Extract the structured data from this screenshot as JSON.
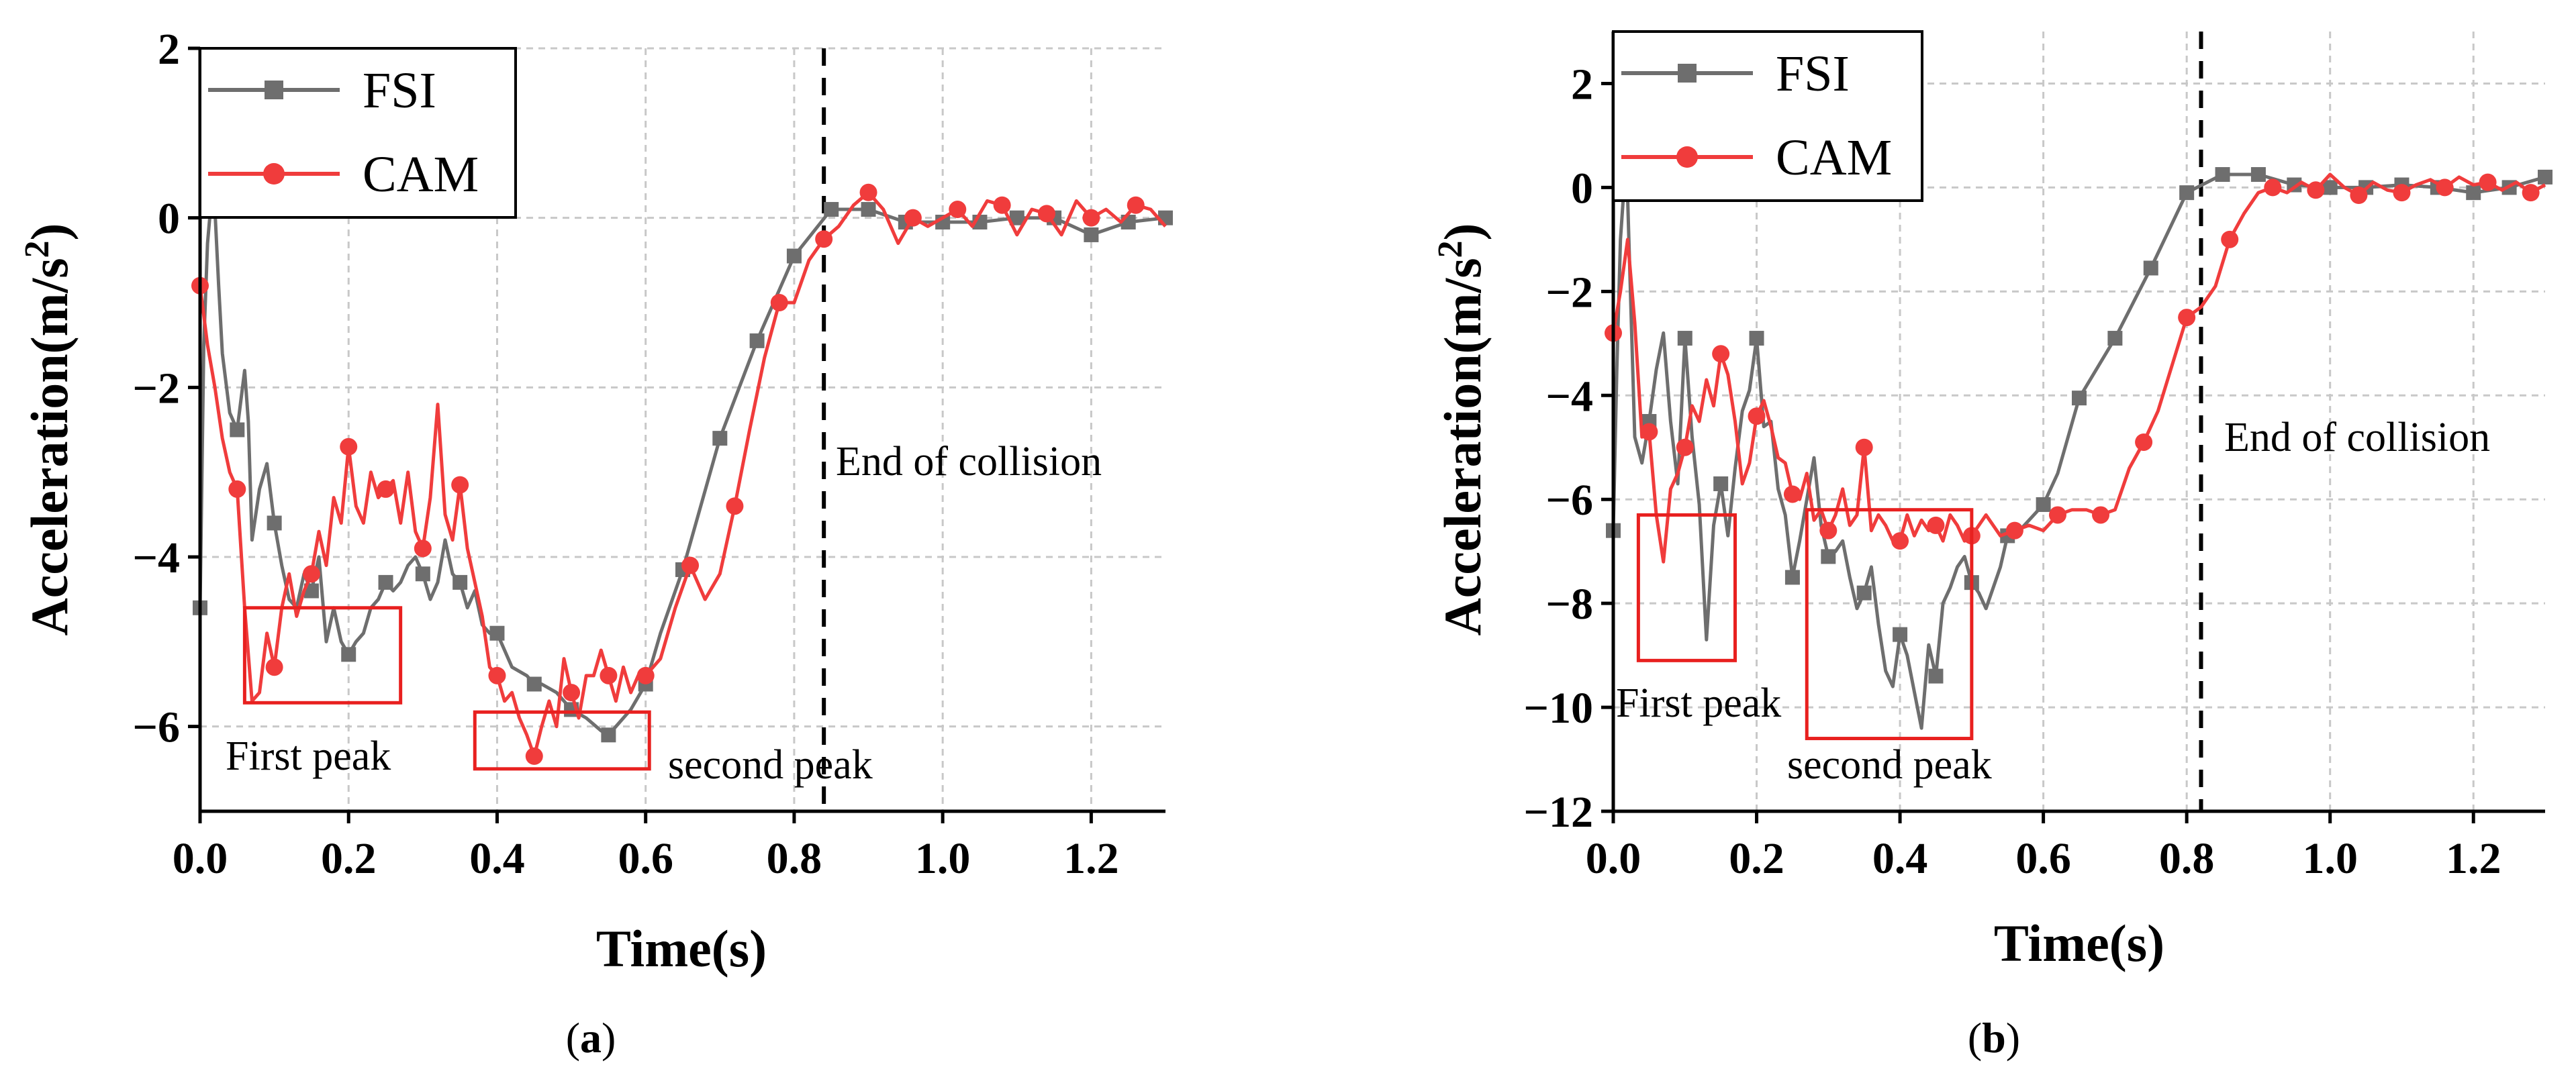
{
  "chart_data": [
    {
      "panel": "a",
      "type": "line",
      "caption_open": "(",
      "caption_label": "a",
      "caption_close": ")",
      "xlabel": "Time(s)",
      "ylabel_main": "Acceleration(m/s",
      "ylabel_sup": "2",
      "ylabel_close": ")",
      "xlim": [
        0,
        1.3
      ],
      "ylim": [
        -7,
        2
      ],
      "xticks": [
        0.0,
        0.2,
        0.4,
        0.6,
        0.8,
        1.0,
        1.2
      ],
      "xtick_labels": [
        "0.0",
        "0.2",
        "0.4",
        "0.6",
        "0.8",
        "1.0",
        "1.2"
      ],
      "yticks": [
        2,
        0,
        -2,
        -4,
        -6
      ],
      "ytick_labels": [
        "2",
        "0",
        "−2",
        "−4",
        "−6"
      ],
      "grid": true,
      "legend_position": "top-left",
      "end_marker_x": 0.84,
      "series": [
        {
          "name": "FSI",
          "color": "#6e6e6e",
          "marker": "square",
          "x": [
            0,
            0.005,
            0.01,
            0.015,
            0.02,
            0.025,
            0.03,
            0.04,
            0.05,
            0.06,
            0.065,
            0.07,
            0.08,
            0.09,
            0.1,
            0.11,
            0.12,
            0.13,
            0.14,
            0.15,
            0.16,
            0.17,
            0.18,
            0.19,
            0.2,
            0.21,
            0.22,
            0.23,
            0.24,
            0.25,
            0.26,
            0.27,
            0.28,
            0.29,
            0.3,
            0.31,
            0.32,
            0.33,
            0.34,
            0.35,
            0.36,
            0.37,
            0.38,
            0.39,
            0.4,
            0.42,
            0.44,
            0.45,
            0.46,
            0.48,
            0.5,
            0.52,
            0.54,
            0.55,
            0.56,
            0.58,
            0.6,
            0.62,
            0.65,
            0.7,
            0.75,
            0.8,
            0.85,
            0.9,
            0.95,
            1.0,
            1.05,
            1.1,
            1.15,
            1.2,
            1.25,
            1.3
          ],
          "values": [
            -4.6,
            -1.5,
            -0.3,
            0.2,
            0.1,
            -0.8,
            -1.6,
            -2.3,
            -2.5,
            -1.8,
            -2.4,
            -3.8,
            -3.2,
            -2.9,
            -3.6,
            -4.1,
            -4.5,
            -4.6,
            -4.2,
            -4.4,
            -4.0,
            -5.0,
            -4.6,
            -5.0,
            -5.15,
            -5.0,
            -4.9,
            -4.6,
            -4.5,
            -4.3,
            -4.4,
            -4.3,
            -4.1,
            -4.0,
            -4.2,
            -4.5,
            -4.3,
            -3.8,
            -4.2,
            -4.3,
            -4.6,
            -4.4,
            -4.8,
            -4.9,
            -4.9,
            -5.3,
            -5.4,
            -5.5,
            -5.5,
            -5.6,
            -5.8,
            -5.9,
            -6.05,
            -6.1,
            -6.0,
            -5.8,
            -5.5,
            -4.9,
            -4.15,
            -2.6,
            -1.45,
            -0.45,
            0.1,
            0.1,
            -0.05,
            -0.05,
            -0.05,
            0.0,
            0.0,
            -0.2,
            -0.05,
            0.0
          ]
        },
        {
          "name": "CAM",
          "color": "#f03c3c",
          "marker": "circle",
          "x": [
            0,
            0.01,
            0.02,
            0.03,
            0.04,
            0.05,
            0.06,
            0.07,
            0.08,
            0.09,
            0.1,
            0.11,
            0.12,
            0.13,
            0.14,
            0.15,
            0.16,
            0.17,
            0.18,
            0.19,
            0.2,
            0.21,
            0.22,
            0.23,
            0.24,
            0.25,
            0.26,
            0.27,
            0.28,
            0.29,
            0.3,
            0.31,
            0.32,
            0.33,
            0.34,
            0.35,
            0.36,
            0.37,
            0.38,
            0.39,
            0.4,
            0.41,
            0.42,
            0.43,
            0.44,
            0.45,
            0.46,
            0.47,
            0.48,
            0.49,
            0.5,
            0.51,
            0.52,
            0.53,
            0.54,
            0.55,
            0.56,
            0.57,
            0.58,
            0.59,
            0.6,
            0.62,
            0.64,
            0.66,
            0.68,
            0.7,
            0.72,
            0.74,
            0.76,
            0.78,
            0.8,
            0.82,
            0.84,
            0.86,
            0.88,
            0.9,
            0.92,
            0.94,
            0.96,
            0.98,
            1.0,
            1.02,
            1.04,
            1.06,
            1.08,
            1.1,
            1.12,
            1.14,
            1.16,
            1.18,
            1.2,
            1.22,
            1.24,
            1.26,
            1.28,
            1.3
          ],
          "values": [
            -0.8,
            -1.5,
            -2.0,
            -2.6,
            -3.0,
            -3.2,
            -4.6,
            -5.7,
            -5.6,
            -4.9,
            -5.3,
            -4.6,
            -4.2,
            -4.7,
            -4.4,
            -4.2,
            -3.7,
            -4.1,
            -3.3,
            -3.6,
            -2.7,
            -3.4,
            -3.6,
            -3.0,
            -3.3,
            -3.2,
            -3.1,
            -3.6,
            -3.0,
            -3.7,
            -3.9,
            -3.3,
            -2.2,
            -3.5,
            -3.8,
            -3.15,
            -3.9,
            -4.3,
            -4.7,
            -5.3,
            -5.4,
            -5.7,
            -5.6,
            -5.9,
            -6.1,
            -6.35,
            -6.0,
            -5.7,
            -6.0,
            -5.2,
            -5.6,
            -5.9,
            -5.4,
            -5.4,
            -5.1,
            -5.4,
            -5.7,
            -5.3,
            -5.6,
            -5.4,
            -5.4,
            -5.2,
            -4.6,
            -4.1,
            -4.5,
            -4.2,
            -3.4,
            -2.5,
            -1.65,
            -1.0,
            -1.0,
            -0.5,
            -0.25,
            -0.1,
            0.15,
            0.3,
            0.1,
            -0.3,
            0.0,
            -0.1,
            0.0,
            0.1,
            -0.1,
            0.2,
            0.15,
            -0.2,
            0.1,
            0.05,
            -0.2,
            0.2,
            0.0,
            0.1,
            -0.05,
            0.15,
            0.1,
            -0.1
          ]
        }
      ],
      "annotations": {
        "end_label": "End of collision",
        "first_peak_label": "First peak",
        "second_peak_label": "second peak",
        "first_peak_box": {
          "x": [
            0.06,
            0.27
          ],
          "y": [
            -5.72,
            -4.6
          ]
        },
        "second_peak_box": {
          "x": [
            0.37,
            0.605
          ],
          "y": [
            -6.5,
            -5.83
          ]
        }
      }
    },
    {
      "panel": "b",
      "type": "line",
      "caption_open": "(",
      "caption_label": "b",
      "caption_close": ")",
      "xlabel": "Time(s)",
      "ylabel_main": "Acceleration(m/s",
      "ylabel_sup": "2",
      "ylabel_close": ")",
      "xlim": [
        0,
        1.3
      ],
      "ylim": [
        -12,
        3
      ],
      "xticks": [
        0.0,
        0.2,
        0.4,
        0.6,
        0.8,
        1.0,
        1.2
      ],
      "xtick_labels": [
        "0.0",
        "0.2",
        "0.4",
        "0.6",
        "0.8",
        "1.0",
        "1.2"
      ],
      "yticks": [
        2,
        0,
        -2,
        -4,
        -6,
        -8,
        -10,
        -12
      ],
      "ytick_labels": [
        "2",
        "0",
        "−2",
        "−4",
        "−6",
        "−8",
        "−10",
        "−12"
      ],
      "grid": true,
      "legend_position": "top-left",
      "end_marker_x": 0.82,
      "series": [
        {
          "name": "FSI",
          "color": "#6e6e6e",
          "marker": "square",
          "x": [
            0,
            0.005,
            0.01,
            0.015,
            0.02,
            0.025,
            0.03,
            0.04,
            0.05,
            0.06,
            0.07,
            0.08,
            0.09,
            0.1,
            0.11,
            0.12,
            0.13,
            0.14,
            0.15,
            0.16,
            0.17,
            0.18,
            0.19,
            0.2,
            0.21,
            0.22,
            0.23,
            0.24,
            0.25,
            0.26,
            0.27,
            0.28,
            0.29,
            0.3,
            0.31,
            0.32,
            0.33,
            0.34,
            0.35,
            0.36,
            0.37,
            0.38,
            0.39,
            0.4,
            0.41,
            0.42,
            0.43,
            0.44,
            0.45,
            0.46,
            0.47,
            0.48,
            0.49,
            0.5,
            0.51,
            0.52,
            0.54,
            0.55,
            0.56,
            0.58,
            0.6,
            0.62,
            0.65,
            0.7,
            0.75,
            0.8,
            0.85,
            0.9,
            0.95,
            1.0,
            1.05,
            1.1,
            1.15,
            1.2,
            1.25,
            1.3
          ],
          "values": [
            -6.6,
            -3.5,
            -1.0,
            0.0,
            -0.2,
            -2.5,
            -4.8,
            -5.3,
            -4.5,
            -3.5,
            -2.8,
            -4.5,
            -5.7,
            -2.9,
            -4.8,
            -6.1,
            -8.7,
            -6.5,
            -5.7,
            -6.7,
            -5.4,
            -4.3,
            -3.9,
            -2.9,
            -4.6,
            -4.5,
            -5.8,
            -6.3,
            -7.5,
            -6.8,
            -6.0,
            -5.2,
            -6.5,
            -7.1,
            -7.0,
            -6.8,
            -7.5,
            -8.1,
            -7.8,
            -7.3,
            -8.4,
            -9.3,
            -9.6,
            -8.6,
            -9.0,
            -9.7,
            -10.4,
            -8.8,
            -9.4,
            -8.0,
            -7.7,
            -7.3,
            -7.1,
            -7.6,
            -7.8,
            -8.1,
            -7.3,
            -6.7,
            -6.7,
            -6.4,
            -6.1,
            -5.5,
            -4.05,
            -2.9,
            -1.55,
            -0.1,
            0.25,
            0.25,
            0.05,
            0.0,
            0.0,
            0.05,
            0.0,
            -0.1,
            0.0,
            0.2
          ]
        },
        {
          "name": "CAM",
          "color": "#f03c3c",
          "marker": "circle",
          "x": [
            0,
            0.01,
            0.02,
            0.03,
            0.04,
            0.05,
            0.06,
            0.07,
            0.08,
            0.09,
            0.1,
            0.11,
            0.12,
            0.13,
            0.14,
            0.15,
            0.16,
            0.17,
            0.18,
            0.19,
            0.2,
            0.21,
            0.22,
            0.23,
            0.24,
            0.25,
            0.26,
            0.27,
            0.28,
            0.29,
            0.3,
            0.31,
            0.32,
            0.33,
            0.34,
            0.35,
            0.36,
            0.37,
            0.38,
            0.39,
            0.4,
            0.41,
            0.42,
            0.43,
            0.44,
            0.45,
            0.46,
            0.47,
            0.48,
            0.49,
            0.5,
            0.52,
            0.54,
            0.56,
            0.58,
            0.6,
            0.62,
            0.64,
            0.66,
            0.68,
            0.7,
            0.72,
            0.74,
            0.76,
            0.78,
            0.8,
            0.82,
            0.84,
            0.86,
            0.88,
            0.9,
            0.92,
            0.94,
            0.96,
            0.98,
            1.0,
            1.02,
            1.04,
            1.06,
            1.08,
            1.1,
            1.12,
            1.14,
            1.16,
            1.18,
            1.2,
            1.22,
            1.24,
            1.26,
            1.28,
            1.3
          ],
          "values": [
            -2.8,
            -2.0,
            -1.0,
            -2.6,
            -4.8,
            -4.7,
            -6.3,
            -7.2,
            -5.8,
            -5.5,
            -5.0,
            -4.2,
            -4.5,
            -3.7,
            -4.2,
            -3.2,
            -3.6,
            -4.5,
            -5.7,
            -5.3,
            -4.4,
            -4.1,
            -4.6,
            -5.2,
            -5.3,
            -5.9,
            -6.0,
            -5.5,
            -6.4,
            -6.2,
            -6.6,
            -6.3,
            -5.8,
            -6.5,
            -6.3,
            -5.0,
            -6.6,
            -6.3,
            -6.5,
            -6.8,
            -6.8,
            -6.3,
            -6.7,
            -6.4,
            -6.6,
            -6.5,
            -6.8,
            -6.3,
            -6.5,
            -6.8,
            -6.7,
            -6.3,
            -6.7,
            -6.6,
            -6.5,
            -6.6,
            -6.3,
            -6.2,
            -6.2,
            -6.3,
            -6.2,
            -5.4,
            -4.9,
            -4.3,
            -3.4,
            -2.5,
            -2.3,
            -1.9,
            -1.0,
            -0.5,
            -0.1,
            0.0,
            -0.1,
            0.1,
            -0.05,
            0.25,
            0.0,
            -0.15,
            0.1,
            -0.05,
            -0.1,
            0.05,
            0.15,
            0.0,
            0.2,
            0.05,
            0.1,
            -0.05,
            0.1,
            -0.1,
            0.05
          ]
        }
      ],
      "annotations": {
        "end_label": "End of collision",
        "first_peak_label": "First peak",
        "second_peak_label": "second peak",
        "first_peak_box": {
          "x": [
            0.035,
            0.17
          ],
          "y": [
            -9.1,
            -6.3
          ]
        },
        "second_peak_box": {
          "x": [
            0.27,
            0.5
          ],
          "y": [
            -10.6,
            -6.2
          ]
        }
      }
    }
  ]
}
